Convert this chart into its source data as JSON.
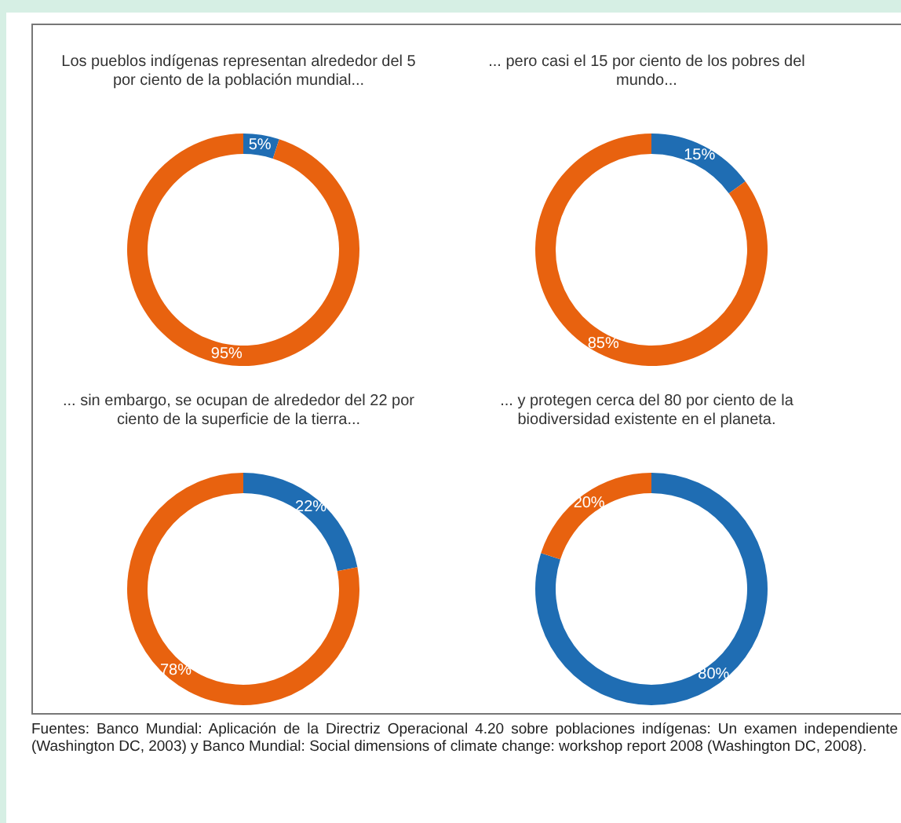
{
  "chart_data": [
    {
      "type": "donut",
      "title": "Los pueblos indígenas representan alrededor del 5 por ciento de la población mundial...",
      "categories": [
        null,
        null
      ],
      "values": [
        5,
        95
      ],
      "colors": [
        "#1f6db3",
        "#e8620f"
      ],
      "value_labels": [
        "5%",
        "95%"
      ]
    },
    {
      "type": "donut",
      "title": "... pero casi el 15 por ciento de los pobres del mundo...",
      "categories": [
        null,
        null
      ],
      "values": [
        15,
        85
      ],
      "colors": [
        "#1f6db3",
        "#e8620f"
      ],
      "value_labels": [
        "15%",
        "85%"
      ]
    },
    {
      "type": "donut",
      "title": "... sin embargo, se ocupan de alrededor del 22 por ciento de la superficie de la tierra...",
      "categories": [
        null,
        null
      ],
      "values": [
        22,
        78
      ],
      "colors": [
        "#1f6db3",
        "#e8620f"
      ],
      "value_labels": [
        "22%",
        "78%"
      ]
    },
    {
      "type": "donut",
      "title": "... y protegen cerca del 80 por ciento de la biodiversidad existente en el planeta.",
      "categories": [
        null,
        null
      ],
      "values": [
        80,
        20
      ],
      "colors": [
        "#1f6db3",
        "#e8620f"
      ],
      "value_labels": [
        "80%",
        "20%"
      ],
      "annotations": [
        "Fuentes: Banco Mundial: Aplicación de la Directriz Operacional 4.20 sobre poblaciones indígenas: Un examen independiente (Washington DC, 2003) y Banco Mundial: Social dimensions of climate change: workshop report 2008 (Washington DC, 2008)."
      ]
    }
  ]
}
